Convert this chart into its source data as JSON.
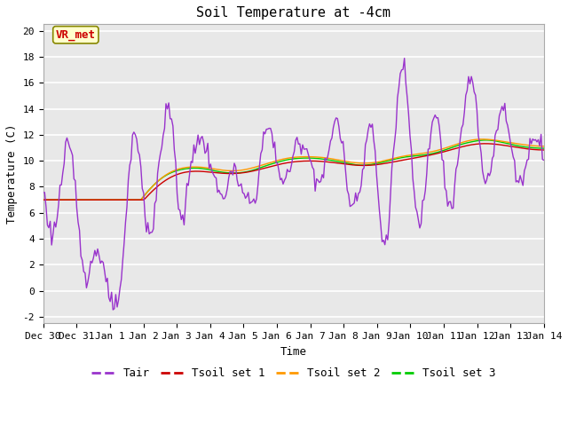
{
  "title": "Soil Temperature at -4cm",
  "xlabel": "Time",
  "ylabel": "Temperature (C)",
  "ylim": [
    -2.5,
    20.5
  ],
  "yticks": [
    -2,
    0,
    2,
    4,
    6,
    8,
    10,
    12,
    14,
    16,
    18,
    20
  ],
  "tick_labels": [
    "Dec 30",
    "Dec 31",
    "Jan 1",
    "Jan 2",
    "Jan 3",
    "Jan 4",
    "Jan 5",
    "Jan 6",
    "Jan 7",
    "Jan 8",
    "Jan 9",
    "Jan 10",
    "Jan 11",
    "Jan 12",
    "Jan 13",
    "Jan 14"
  ],
  "colors": {
    "Tair": "#9933cc",
    "Tsoil1": "#cc0000",
    "Tsoil2": "#ff9900",
    "Tsoil3": "#00cc00"
  },
  "legend_labels": [
    "Tair",
    "Tsoil set 1",
    "Tsoil set 2",
    "Tsoil set 3"
  ],
  "annotation_text": "VR_met",
  "annotation_color": "#cc0000",
  "annotation_bg": "#ffffcc",
  "fig_bg": "#ffffff",
  "plot_bg": "#e8e8e8",
  "grid_color": "#ffffff",
  "linewidth": 1.0,
  "title_fontsize": 11,
  "axis_fontsize": 9,
  "tick_fontsize": 8,
  "legend_fontsize": 9
}
